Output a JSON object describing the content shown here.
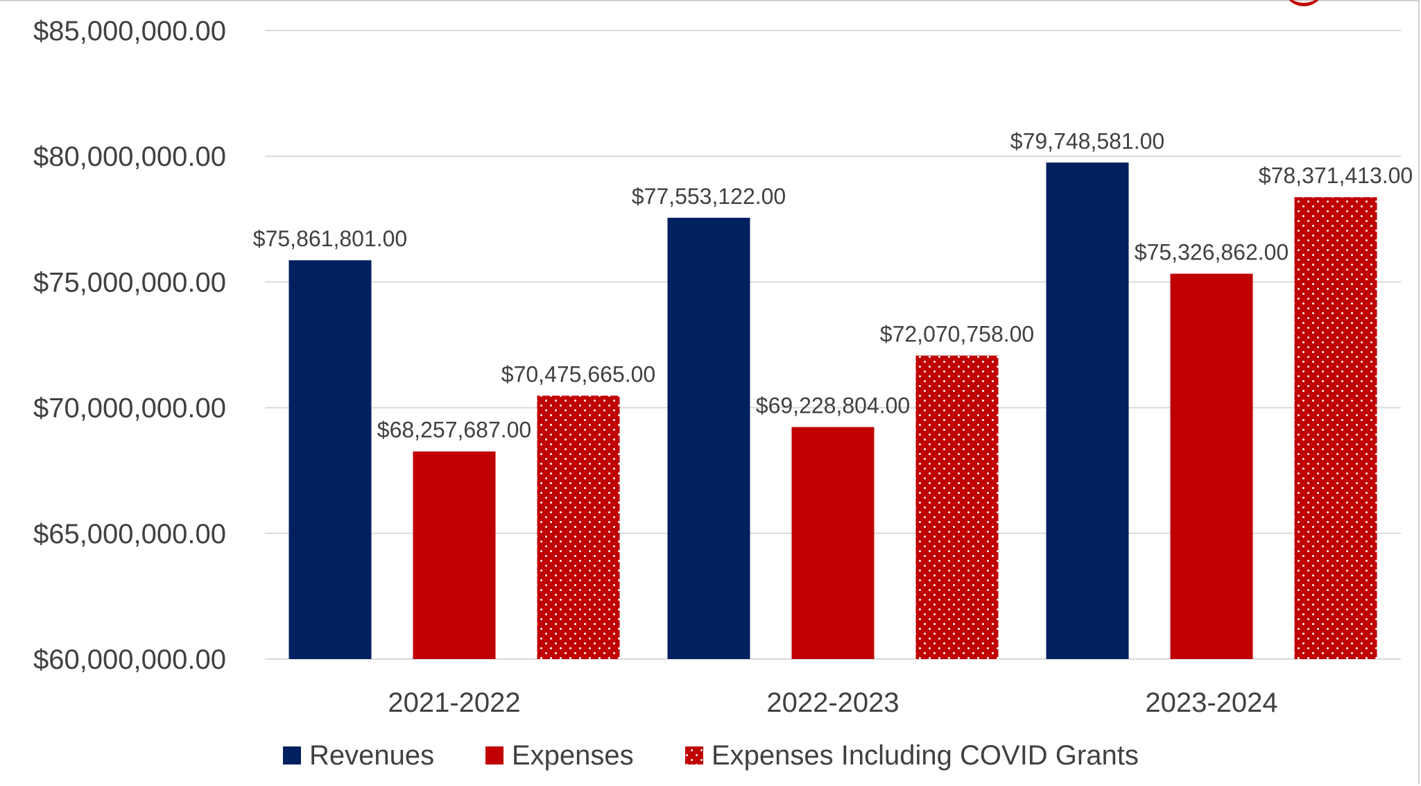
{
  "colors": {
    "revenues": "#002060",
    "expenses": "#c00000",
    "covid": "#c00000",
    "grid": "#d9d9d9",
    "text": "#404040"
  },
  "chart_data": {
    "type": "bar",
    "categories": [
      "2021-2022",
      "2022-2023",
      "2023-2024"
    ],
    "series": [
      {
        "name": "Revenues",
        "values": [
          75861801,
          77553122,
          79748581
        ],
        "labels": [
          "$75,861,801.00",
          "$77,553,122.00",
          "$79,748,581.00"
        ],
        "pattern": "solid"
      },
      {
        "name": "Expenses",
        "values": [
          68257687,
          69228804,
          75326862
        ],
        "labels": [
          "$68,257,687.00",
          "$69,228,804.00",
          "$75,326,862.00"
        ],
        "pattern": "solid"
      },
      {
        "name": "Expenses Including COVID Grants",
        "values": [
          70475665,
          72070758,
          78371413
        ],
        "labels": [
          "$70,475,665.00",
          "$72,070,758.00",
          "$78,371,413.00"
        ],
        "pattern": "dotted"
      }
    ],
    "ylim": [
      60000000,
      85000000
    ],
    "yticks": [
      60000000,
      65000000,
      70000000,
      75000000,
      80000000,
      85000000
    ],
    "ytick_labels": [
      "$60,000,000.00",
      "$65,000,000.00",
      "$70,000,000.00",
      "$75,000,000.00",
      "$80,000,000.00",
      "$85,000,000.00"
    ],
    "grid": true,
    "legend_position": "bottom",
    "title": "",
    "xlabel": "",
    "ylabel": ""
  }
}
